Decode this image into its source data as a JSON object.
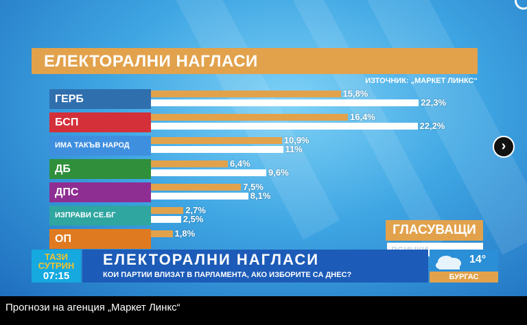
{
  "chart_data": {
    "type": "bar",
    "title": "ЕЛЕКТОРАЛНИ НАГЛАСИ",
    "source": "ИЗТОЧНИК: „МАРКЕТ ЛИНКС“",
    "categories": [
      "ГЕРБ",
      "БСП",
      "ИМА ТАКЪВ НАРОД",
      "ДБ",
      "ДПС",
      "ИЗПРАВИ СЕ.БГ",
      "ОП"
    ],
    "category_colors": [
      "#2f6fae",
      "#d3303a",
      "#3f8fdf",
      "#2f8f3a",
      "#8e2e93",
      "#2fa6a0",
      "#e07a20"
    ],
    "series": [
      {
        "color": "#e2a24c",
        "values": [
          15.8,
          16.4,
          10.9,
          6.4,
          7.5,
          2.7,
          1.8
        ],
        "labels": [
          "15,8%",
          "16,4%",
          "10,9%",
          "6,4%",
          "7,5%",
          "2,7%",
          "1,8%"
        ]
      },
      {
        "color": "#ffffff",
        "values": [
          22.3,
          22.2,
          11,
          9.6,
          8.1,
          2.5,
          null
        ],
        "labels": [
          "22,3%",
          "22,2%",
          "11%",
          "9,6%",
          "8,1%",
          "2,5%",
          ""
        ]
      }
    ],
    "xlim": [
      0,
      25
    ]
  },
  "voters_badge": "ГЛАСУВАЩИ",
  "voters_sub": "ВСИЧКИ",
  "lower_third": {
    "show_name": "ТАЗИ СУТРИН",
    "time": "07:15",
    "headline": "ЕЛЕКТОРАЛНИ НАГЛАСИ",
    "subheadline": "КОИ ПАРТИИ ВЛИЗАТ В ПАРЛАМЕНТА, АКО ИЗБОРИТЕ СА ДНЕС?",
    "temperature": "14°",
    "city": "БУРГАС",
    "weather_icon": "cloud-rain-icon"
  },
  "next_arrow_glyph": "›",
  "caption": "Прогнози на агенция „Маркет Линкс“"
}
